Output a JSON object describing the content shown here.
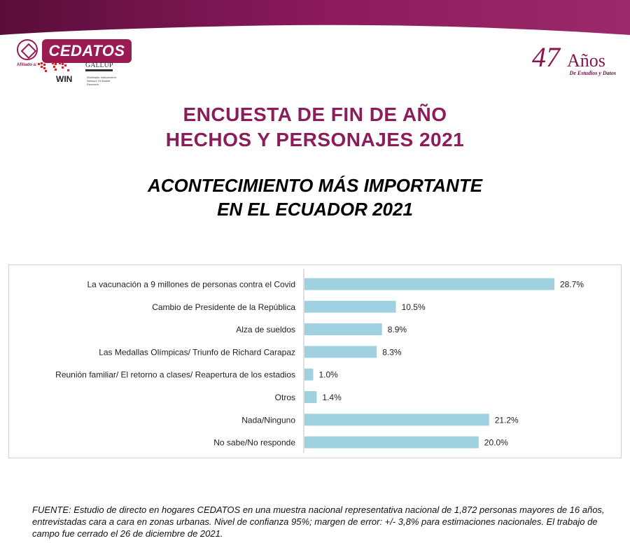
{
  "brand": {
    "logo_text": "CEDATOS",
    "affiliated_label": "Afiliado a:",
    "win_label": "WIN",
    "gallup_label": "GALLUP",
    "win_description": "Worldwide Independent Network Of Market Research",
    "anniversary_number": "47",
    "anniversary_word": "Años",
    "anniversary_subtitle": "De Estudios y Datos",
    "accent_color": "#8c1c5a",
    "bar_color": "#9fd1e0"
  },
  "header": {
    "title_line1": "ENCUESTA DE FIN DE AÑO",
    "title_line2": "HECHOS Y PERSONAJES 2021",
    "subtitle_line1": "ACONTECIMIENTO MÁS IMPORTANTE",
    "subtitle_line2": "EN EL ECUADOR 2021"
  },
  "chart_data": {
    "type": "bar",
    "orientation": "horizontal",
    "categories": [
      "La vacunación a 9 millones de personas contra el Covid",
      "Cambio de Presidente de la República",
      "Alza de sueldos",
      "Las Medallas Olímpicas/ Triunfo de Richard Carapaz",
      "Reunión familiar/ El retorno a clases/ Reapertura de los estadios",
      "Otros",
      "Nada/Ninguno",
      "No sabe/No responde"
    ],
    "values": [
      28.7,
      10.5,
      8.9,
      8.3,
      1.0,
      1.4,
      21.2,
      20.0
    ],
    "value_labels": [
      "28.7%",
      "10.5%",
      "8.9%",
      "8.3%",
      "1.0%",
      "1.4%",
      "21.2%",
      "20.0%"
    ],
    "xlim": [
      0,
      30
    ],
    "grid": false,
    "legend": "none"
  },
  "footer": {
    "source": "FUENTE: Estudio de directo en hogares CEDATOS en una muestra nacional representativa nacional de 1,872 personas mayores de 16 años, entrevistadas cara a cara en zonas urbanas. Nivel de confianza 95%; margen de error: +/- 3,8% para estimaciones nacionales. El trabajo de campo fue cerrado el 26 de diciembre de 2021."
  }
}
